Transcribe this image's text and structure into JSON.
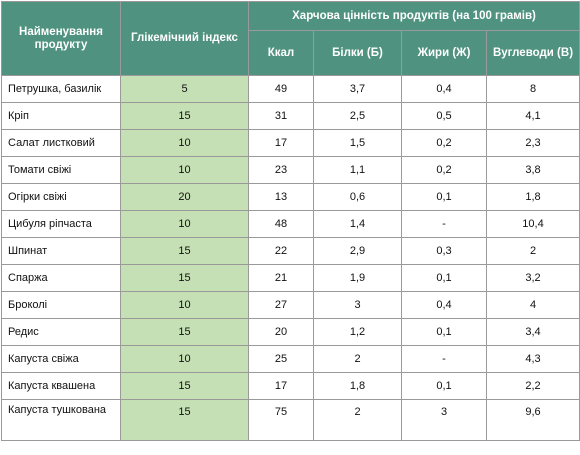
{
  "header": {
    "name": "Найменування продукту",
    "gi": "Глікемічний індекс",
    "nutrition": "Харчова цінність продуктів (на 100 грамів)",
    "kcal": "Ккал",
    "protein": "Білки (Б)",
    "fat": "Жири (Ж)",
    "carbs": "Вуглеводи (В)"
  },
  "rows": [
    {
      "name": "Петрушка, базилік",
      "gi": "5",
      "kcal": "49",
      "protein": "3,7",
      "fat": "0,4",
      "carbs": "8"
    },
    {
      "name": "Кріп",
      "gi": "15",
      "kcal": "31",
      "protein": "2,5",
      "fat": "0,5",
      "carbs": "4,1"
    },
    {
      "name": "Салат листковий",
      "gi": "10",
      "kcal": "17",
      "protein": "1,5",
      "fat": "0,2",
      "carbs": "2,3"
    },
    {
      "name": "Томати свіжі",
      "gi": "10",
      "kcal": "23",
      "protein": "1,1",
      "fat": "0,2",
      "carbs": "3,8"
    },
    {
      "name": "Огірки свіжі",
      "gi": "20",
      "kcal": "13",
      "protein": "0,6",
      "fat": "0,1",
      "carbs": "1,8"
    },
    {
      "name": "Цибуля ріпчаста",
      "gi": "10",
      "kcal": "48",
      "protein": "1,4",
      "fat": "-",
      "carbs": "10,4"
    },
    {
      "name": "Шпинат",
      "gi": "15",
      "kcal": "22",
      "protein": "2,9",
      "fat": "0,3",
      "carbs": "2"
    },
    {
      "name": "Спаржа",
      "gi": "15",
      "kcal": "21",
      "protein": "1,9",
      "fat": "0,1",
      "carbs": "3,2"
    },
    {
      "name": "Броколі",
      "gi": "10",
      "kcal": "27",
      "protein": "3",
      "fat": "0,4",
      "carbs": "4"
    },
    {
      "name": "Редис",
      "gi": "15",
      "kcal": "20",
      "protein": "1,2",
      "fat": "0,1",
      "carbs": "3,4"
    },
    {
      "name": "Капуста свіжа",
      "gi": "10",
      "kcal": "25",
      "protein": "2",
      "fat": "-",
      "carbs": "4,3"
    },
    {
      "name": "Капуста квашена",
      "gi": "15",
      "kcal": "17",
      "protein": "1,8",
      "fat": "0,1",
      "carbs": "2,2"
    },
    {
      "name": "Капуста тушкована",
      "gi": "15",
      "kcal": "75",
      "protein": "2",
      "fat": "3",
      "carbs": "9,6"
    }
  ]
}
